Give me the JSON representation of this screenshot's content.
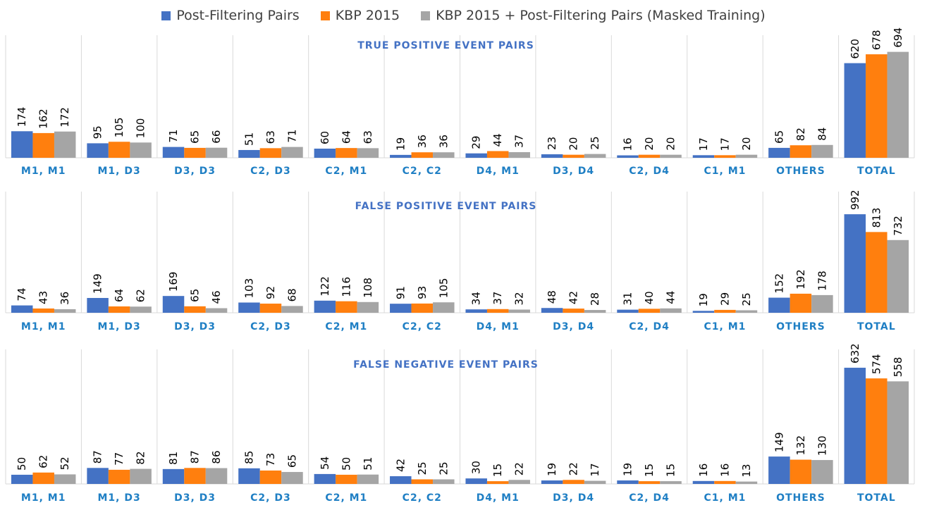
{
  "legend": {
    "items": [
      {
        "label": "Post-Filtering Pairs",
        "color": "#4472c4"
      },
      {
        "label": "KBP 2015",
        "color": "#ff7f0e"
      },
      {
        "label": "KBP 2015 + Post-Filtering Pairs (Masked Training)",
        "color": "#a5a5a5"
      }
    ]
  },
  "chart_data": [
    {
      "type": "bar",
      "title": "TRUE POSITIVE EVENT PAIRS",
      "categories": [
        "M1, M1",
        "M1, D3",
        "D3, D3",
        "C2, D3",
        "C2, M1",
        "C2, C2",
        "D4, M1",
        "D3, D4",
        "C2, D4",
        "C1, M1",
        "OTHERS",
        "TOTAL"
      ],
      "series": [
        {
          "name": "Post-Filtering Pairs",
          "values": [
            174,
            95,
            71,
            51,
            60,
            19,
            29,
            23,
            16,
            17,
            65,
            620
          ]
        },
        {
          "name": "KBP 2015",
          "values": [
            162,
            105,
            65,
            63,
            64,
            36,
            44,
            20,
            20,
            17,
            82,
            678
          ]
        },
        {
          "name": "KBP 2015 + Post-Filtering Pairs (Masked Training)",
          "values": [
            172,
            100,
            66,
            71,
            63,
            36,
            37,
            25,
            20,
            20,
            84,
            694
          ]
        }
      ],
      "grid": true
    },
    {
      "type": "bar",
      "title": "FALSE POSITIVE EVENT PAIRS",
      "categories": [
        "M1, M1",
        "M1, D3",
        "D3, D3",
        "C2, D3",
        "C2, M1",
        "C2, C2",
        "D4, M1",
        "D3, D4",
        "C2, D4",
        "C1, M1",
        "OTHERS",
        "TOTAL"
      ],
      "series": [
        {
          "name": "Post-Filtering Pairs",
          "values": [
            74,
            149,
            169,
            103,
            122,
            91,
            34,
            48,
            31,
            19,
            152,
            992
          ]
        },
        {
          "name": "KBP 2015",
          "values": [
            43,
            64,
            65,
            92,
            116,
            93,
            37,
            42,
            40,
            29,
            192,
            813
          ]
        },
        {
          "name": "KBP 2015 + Post-Filtering Pairs (Masked Training)",
          "values": [
            36,
            62,
            46,
            68,
            108,
            105,
            32,
            28,
            44,
            25,
            178,
            732
          ]
        }
      ],
      "grid": true
    },
    {
      "type": "bar",
      "title": "FALSE NEGATIVE EVENT PAIRS",
      "categories": [
        "M1, M1",
        "M1, D3",
        "D3, D3",
        "C2, D3",
        "C2, M1",
        "C2, C2",
        "D4, M1",
        "D3, D4",
        "C2, D4",
        "C1, M1",
        "OTHERS",
        "TOTAL"
      ],
      "series": [
        {
          "name": "Post-Filtering Pairs",
          "values": [
            50,
            87,
            81,
            85,
            54,
            42,
            30,
            19,
            19,
            16,
            149,
            632
          ]
        },
        {
          "name": "KBP 2015",
          "values": [
            62,
            77,
            87,
            73,
            50,
            25,
            15,
            22,
            15,
            16,
            132,
            574
          ]
        },
        {
          "name": "KBP 2015 + Post-Filtering Pairs (Masked Training)",
          "values": [
            52,
            82,
            86,
            65,
            51,
            25,
            22,
            17,
            15,
            13,
            130,
            558
          ]
        }
      ],
      "grid": true
    }
  ]
}
